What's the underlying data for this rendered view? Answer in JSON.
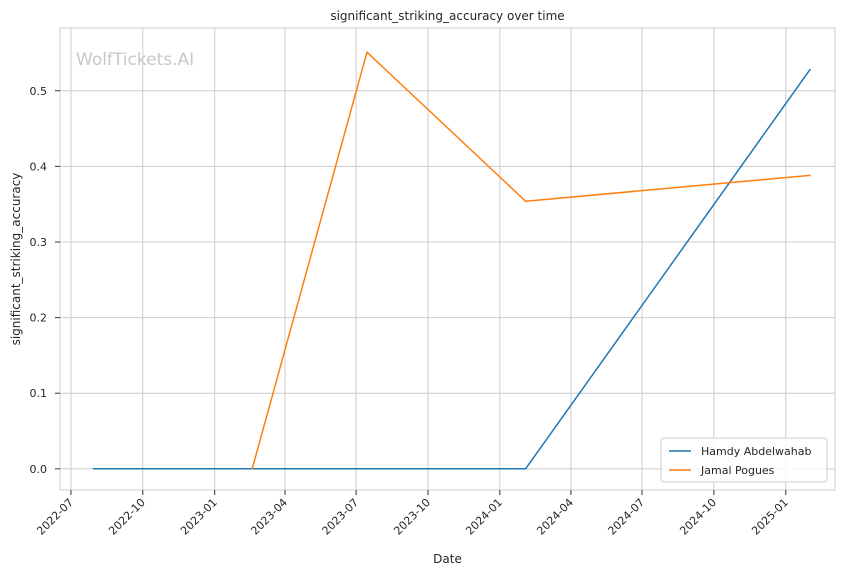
{
  "chart_data": {
    "type": "line",
    "title": "significant_striking_accuracy over time",
    "xlabel": "Date",
    "ylabel": "significant_striking_accuracy",
    "watermark": "WolfTickets.AI",
    "grid": true,
    "legend_position": "lower-right",
    "x_ticks": [
      "2022-07",
      "2022-10",
      "2023-01",
      "2023-04",
      "2023-07",
      "2023-10",
      "2024-01",
      "2024-04",
      "2024-07",
      "2024-10",
      "2025-01"
    ],
    "y_ticks": [
      "0.0",
      "0.1",
      "0.2",
      "0.3",
      "0.4",
      "0.5"
    ],
    "xlim": [
      "2022-06-17",
      "2025-03-05"
    ],
    "ylim": [
      -0.028,
      0.583
    ],
    "series": [
      {
        "name": "Hamdy Abdelwahab",
        "color": "#1f77b4",
        "x": [
          "2022-07-30",
          "2024-02-03",
          "2025-02-01"
        ],
        "y": [
          0.0,
          0.0,
          0.528
        ]
      },
      {
        "name": "Jamal Pogues",
        "color": "#ff7f0e",
        "x": [
          "2023-02-18",
          "2023-07-15",
          "2024-02-03",
          "2025-02-01"
        ],
        "y": [
          0.0,
          0.551,
          0.354,
          0.388
        ]
      }
    ]
  }
}
